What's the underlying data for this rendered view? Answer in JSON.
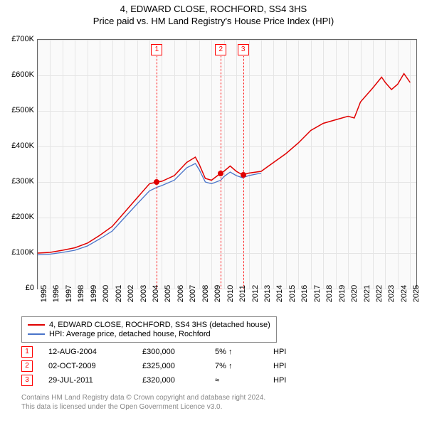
{
  "title_line1": "4, EDWARD CLOSE, ROCHFORD, SS4 3HS",
  "title_line2": "Price paid vs. HM Land Registry's House Price Index (HPI)",
  "chart": {
    "type": "line",
    "background_color": "#fafafa",
    "grid_color": "#e5e5e5",
    "border_color": "#666666",
    "xlim": [
      1995,
      2025.5
    ],
    "ylim": [
      0,
      700000
    ],
    "ytick_step": 100000,
    "y_ticks": [
      "£0",
      "£100K",
      "£200K",
      "£300K",
      "£400K",
      "£500K",
      "£600K",
      "£700K"
    ],
    "x_ticks": [
      "1995",
      "1996",
      "1997",
      "1998",
      "1999",
      "2000",
      "2001",
      "2002",
      "2003",
      "2004",
      "2005",
      "2006",
      "2007",
      "2008",
      "2009",
      "2010",
      "2011",
      "2012",
      "2013",
      "2014",
      "2015",
      "2016",
      "2017",
      "2018",
      "2019",
      "2020",
      "2021",
      "2022",
      "2023",
      "2024",
      "2025"
    ],
    "series": [
      {
        "name": "property",
        "label": "4, EDWARD CLOSE, ROCHFORD, SS4 3HS (detached house)",
        "color": "#e00000",
        "line_width": 1.5,
        "points": [
          [
            1995,
            100000
          ],
          [
            1996,
            102000
          ],
          [
            1997,
            108000
          ],
          [
            1998,
            115000
          ],
          [
            1999,
            128000
          ],
          [
            2000,
            150000
          ],
          [
            2001,
            175000
          ],
          [
            2002,
            215000
          ],
          [
            2003,
            255000
          ],
          [
            2004,
            295000
          ],
          [
            2004.6,
            300000
          ],
          [
            2005,
            302000
          ],
          [
            2006,
            318000
          ],
          [
            2007,
            355000
          ],
          [
            2007.7,
            370000
          ],
          [
            2008,
            350000
          ],
          [
            2008.5,
            310000
          ],
          [
            2009,
            305000
          ],
          [
            2009.75,
            325000
          ],
          [
            2010,
            330000
          ],
          [
            2010.5,
            345000
          ],
          [
            2011,
            330000
          ],
          [
            2011.5,
            320000
          ],
          [
            2012,
            325000
          ],
          [
            2013,
            330000
          ],
          [
            2014,
            355000
          ],
          [
            2015,
            380000
          ],
          [
            2016,
            410000
          ],
          [
            2017,
            445000
          ],
          [
            2018,
            465000
          ],
          [
            2019,
            475000
          ],
          [
            2020,
            485000
          ],
          [
            2020.5,
            480000
          ],
          [
            2021,
            525000
          ],
          [
            2022,
            565000
          ],
          [
            2022.7,
            595000
          ],
          [
            2023,
            580000
          ],
          [
            2023.5,
            560000
          ],
          [
            2024,
            575000
          ],
          [
            2024.5,
            605000
          ],
          [
            2025,
            580000
          ]
        ]
      },
      {
        "name": "hpi",
        "label": "HPI: Average price, detached house, Rochford",
        "color": "#4a74c9",
        "line_width": 1.3,
        "points": [
          [
            1995,
            95000
          ],
          [
            1996,
            97000
          ],
          [
            1997,
            102000
          ],
          [
            1998,
            108000
          ],
          [
            1999,
            120000
          ],
          [
            2000,
            140000
          ],
          [
            2001,
            162000
          ],
          [
            2002,
            200000
          ],
          [
            2003,
            238000
          ],
          [
            2004,
            275000
          ],
          [
            2004.6,
            285000
          ],
          [
            2005,
            290000
          ],
          [
            2006,
            305000
          ],
          [
            2007,
            340000
          ],
          [
            2007.7,
            352000
          ],
          [
            2008,
            335000
          ],
          [
            2008.5,
            300000
          ],
          [
            2009,
            295000
          ],
          [
            2009.75,
            305000
          ],
          [
            2010,
            315000
          ],
          [
            2010.5,
            328000
          ],
          [
            2011,
            318000
          ],
          [
            2011.5,
            312000
          ],
          [
            2012,
            318000
          ],
          [
            2013,
            325000
          ]
        ]
      }
    ],
    "sale_markers": [
      {
        "n": "1",
        "year": 2004.6,
        "price": 300000
      },
      {
        "n": "2",
        "year": 2009.75,
        "price": 325000
      },
      {
        "n": "3",
        "year": 2011.55,
        "price": 320000
      }
    ]
  },
  "legend": {
    "items": [
      {
        "color": "#e00000",
        "label": "4, EDWARD CLOSE, ROCHFORD, SS4 3HS (detached house)"
      },
      {
        "color": "#4a74c9",
        "label": "HPI: Average price, detached house, Rochford"
      }
    ]
  },
  "sales": [
    {
      "n": "1",
      "date": "12-AUG-2004",
      "price": "£300,000",
      "pct": "5% ↑",
      "hpi": "HPI"
    },
    {
      "n": "2",
      "date": "02-OCT-2009",
      "price": "£325,000",
      "pct": "7% ↑",
      "hpi": "HPI"
    },
    {
      "n": "3",
      "date": "29-JUL-2011",
      "price": "£320,000",
      "pct": "≈",
      "hpi": "HPI"
    }
  ],
  "footer_line1": "Contains HM Land Registry data © Crown copyright and database right 2024.",
  "footer_line2": "This data is licensed under the Open Government Licence v3.0."
}
